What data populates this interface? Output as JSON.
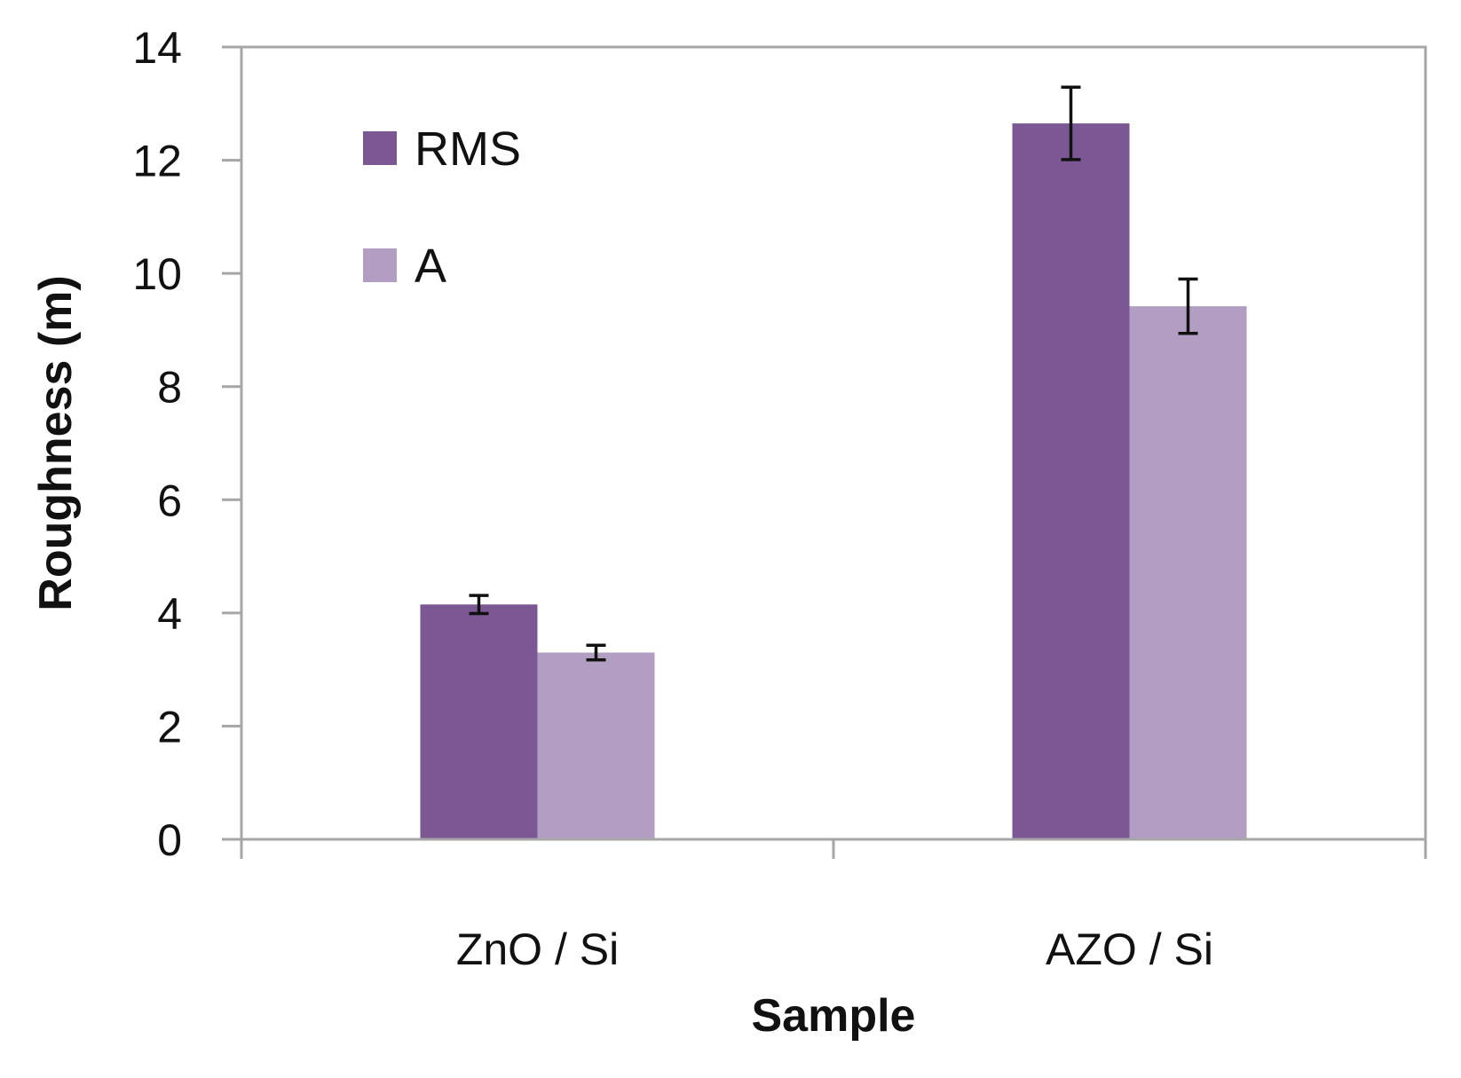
{
  "chart_data": {
    "type": "bar",
    "title": "",
    "xlabel": "Sample",
    "ylabel": "Roughness (m)",
    "ylim": [
      0,
      14
    ],
    "yticks": [
      0,
      2,
      4,
      6,
      8,
      10,
      12,
      14
    ],
    "grid": false,
    "legend_position": "top-left",
    "categories": [
      "ZnO / Si",
      "AZO / Si"
    ],
    "series": [
      {
        "name": "RMS",
        "color": "#7b5893",
        "values": [
          4.15,
          12.65
        ],
        "errors": [
          0.16,
          0.64
        ]
      },
      {
        "name": "A",
        "color": "#b19ec2",
        "values": [
          3.3,
          9.42
        ],
        "errors": [
          0.13,
          0.48
        ]
      }
    ],
    "axis_color": "#a6a6a6",
    "error_bar_color": "#111111"
  }
}
